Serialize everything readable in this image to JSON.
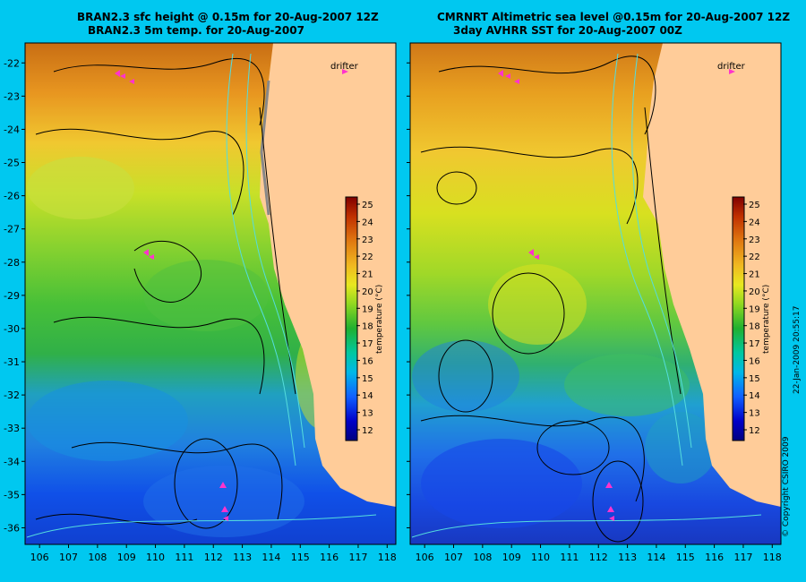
{
  "left_panel": {
    "title_line1": "BRAN2.3 sfc height @ 0.15m for 20-Aug-2007 12Z",
    "title_line2": "BRAN2.3 5m temp. for 20-Aug-2007"
  },
  "right_panel": {
    "title_line1": "CMRNRT Altimetric sea level  @0.15m  for 20-Aug-2007 12Z",
    "title_line2": "3day AVHRR SST for 20-Aug-2007 00Z"
  },
  "legend": {
    "drifter_label": "drifter",
    "colorbar_label": "temperature (°C)",
    "colorbar_ticks": [
      "12",
      "13",
      "14",
      "15",
      "16",
      "17",
      "18",
      "19",
      "20",
      "21",
      "22",
      "23",
      "24",
      "25"
    ]
  },
  "axes": {
    "lon_ticks": [
      "106",
      "107",
      "108",
      "109",
      "110",
      "111",
      "112",
      "113",
      "114",
      "115",
      "116",
      "117",
      "118"
    ],
    "lat_ticks": [
      "-22",
      "-23",
      "-24",
      "-25",
      "-26",
      "-27",
      "-28",
      "-29",
      "-30",
      "-31",
      "-32",
      "-33",
      "-34",
      "-35",
      "-36"
    ],
    "lon_range": [
      105.5,
      118.3
    ],
    "lat_range": [
      -36.5,
      -21.4
    ]
  },
  "credits": {
    "copyright": "© Copyright CSIRO 2009",
    "timestamp": "22-Jan-2009 20:55:17"
  },
  "colors": {
    "background": "#00c8f0",
    "land": "#ffcc99",
    "drifter": "#ff33cc",
    "coast_contour": "#55dddd"
  }
}
